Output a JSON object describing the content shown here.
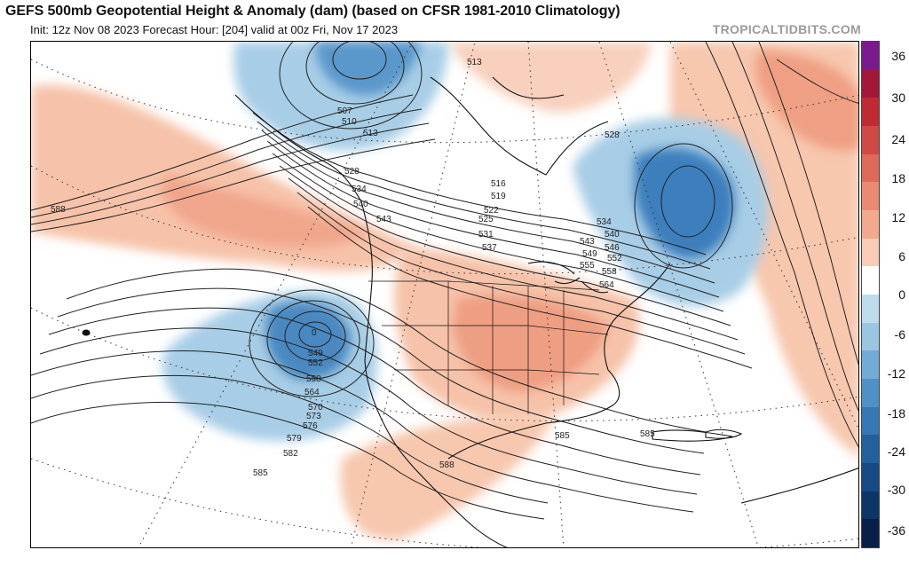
{
  "header": {
    "title": "GEFS 500mb Geopotential Height & Anomaly (dam) (based on CFSR 1981-2010 Climatology)",
    "subtitle": "Init: 12z Nov 08 2023   Forecast Hour: [204]   valid at 00z Fri, Nov 17 2023",
    "brand": "TROPICALTIDBITS.COM"
  },
  "colorbar": {
    "labels": [
      "36",
      "30",
      "24",
      "18",
      "12",
      "6",
      "0",
      "-6",
      "-12",
      "-18",
      "-24",
      "-30",
      "-36"
    ],
    "colors": [
      "#7b1a8f",
      "#a3173b",
      "#c02a33",
      "#cf4a44",
      "#de6a5a",
      "#ea8a72",
      "#f3a98e",
      "#f9ccb7",
      "#ffffff",
      "#bfdcec",
      "#9ac6e2",
      "#72abd6",
      "#4f90c7",
      "#3677b6",
      "#22609e",
      "#154a85",
      "#0c3568",
      "#081f4a"
    ]
  },
  "map": {
    "contour_labels": [
      "513",
      "507",
      "510",
      "513",
      "528",
      "534",
      "540",
      "543",
      "516",
      "519",
      "522",
      "525",
      "528",
      "531",
      "537",
      "534",
      "540",
      "543",
      "546",
      "549",
      "552",
      "555",
      "558",
      "564",
      "549",
      "552",
      "558",
      "564",
      "570",
      "573",
      "576",
      "579",
      "582",
      "585",
      "585",
      "585",
      "588",
      "588",
      "0"
    ]
  }
}
